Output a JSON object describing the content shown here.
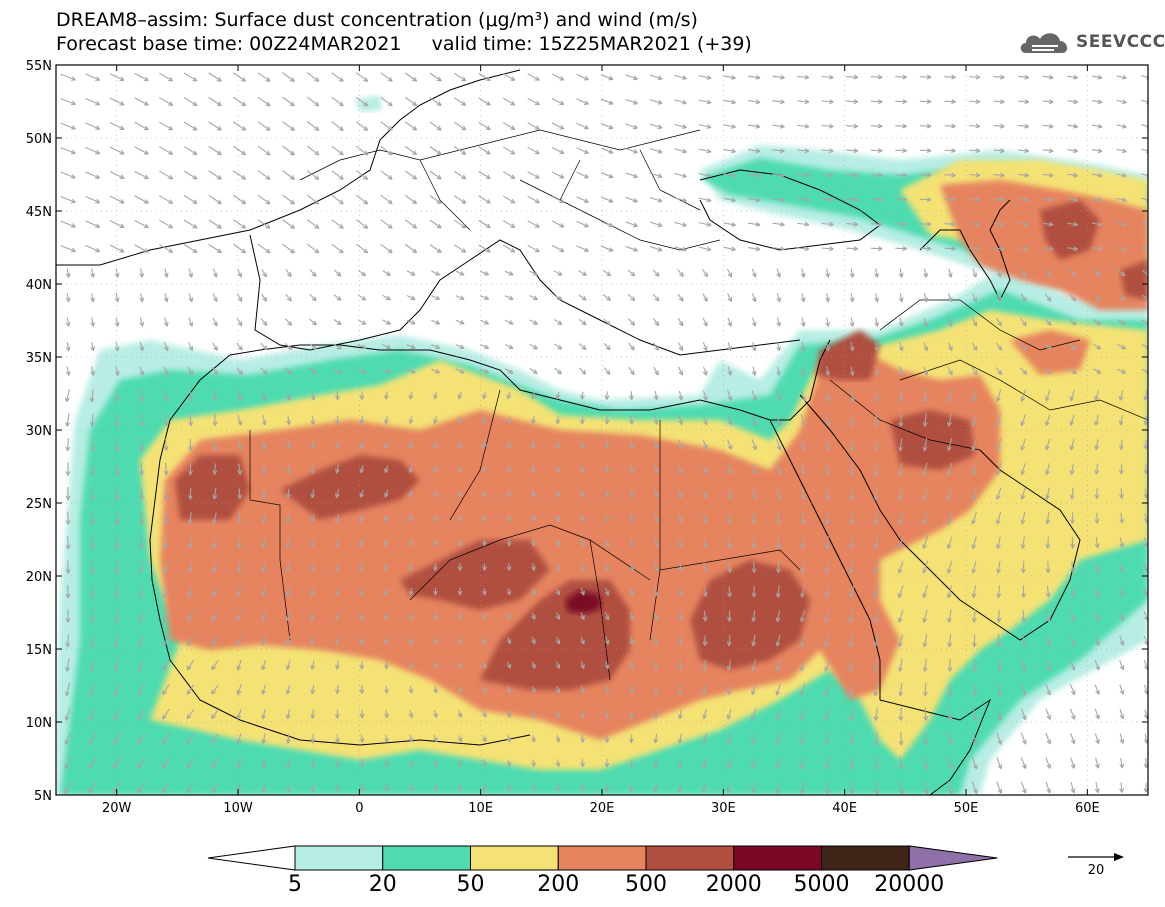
{
  "header": {
    "line1": "DREAM8–assim: Surface dust concentration (μg/m³) and wind (m/s)",
    "line2": "Forecast base time: 00Z24MAR2021     valid time: 15Z25MAR2021 (+39)"
  },
  "logo": {
    "text": "SEEVCCC",
    "icon": "cloud-icon",
    "color": "#555555"
  },
  "map": {
    "lon_range": [
      -25,
      65
    ],
    "lat_range": [
      5,
      55
    ],
    "lon_ticks": [
      {
        "lon": -20,
        "label": "20W"
      },
      {
        "lon": -10,
        "label": "10W"
      },
      {
        "lon": 0,
        "label": "0"
      },
      {
        "lon": 10,
        "label": "10E"
      },
      {
        "lon": 20,
        "label": "20E"
      },
      {
        "lon": 30,
        "label": "30E"
      },
      {
        "lon": 40,
        "label": "40E"
      },
      {
        "lon": 50,
        "label": "50E"
      },
      {
        "lon": 60,
        "label": "60E"
      }
    ],
    "lat_ticks": [
      {
        "lat": 55,
        "label": "55N"
      },
      {
        "lat": 50,
        "label": "50N"
      },
      {
        "lat": 45,
        "label": "45N"
      },
      {
        "lat": 40,
        "label": "40N"
      },
      {
        "lat": 35,
        "label": "35N"
      },
      {
        "lat": 30,
        "label": "30N"
      },
      {
        "lat": 25,
        "label": "25N"
      },
      {
        "lat": 20,
        "label": "20N"
      },
      {
        "lat": 15,
        "label": "15N"
      },
      {
        "lat": 10,
        "label": "10N"
      },
      {
        "lat": 5,
        "label": "5N"
      }
    ],
    "wind_arrow_color": "#a6a6a6"
  },
  "colorbar": {
    "colors": [
      "#b7ede4",
      "#4fdbb0",
      "#f4e274",
      "#e6845e",
      "#b04f40",
      "#7a0826",
      "#402418",
      "#9070a8"
    ],
    "labels": [
      "5",
      "20",
      "50",
      "200",
      "500",
      "2000",
      "5000",
      "20000"
    ]
  },
  "wind_reference": {
    "label": "20"
  }
}
